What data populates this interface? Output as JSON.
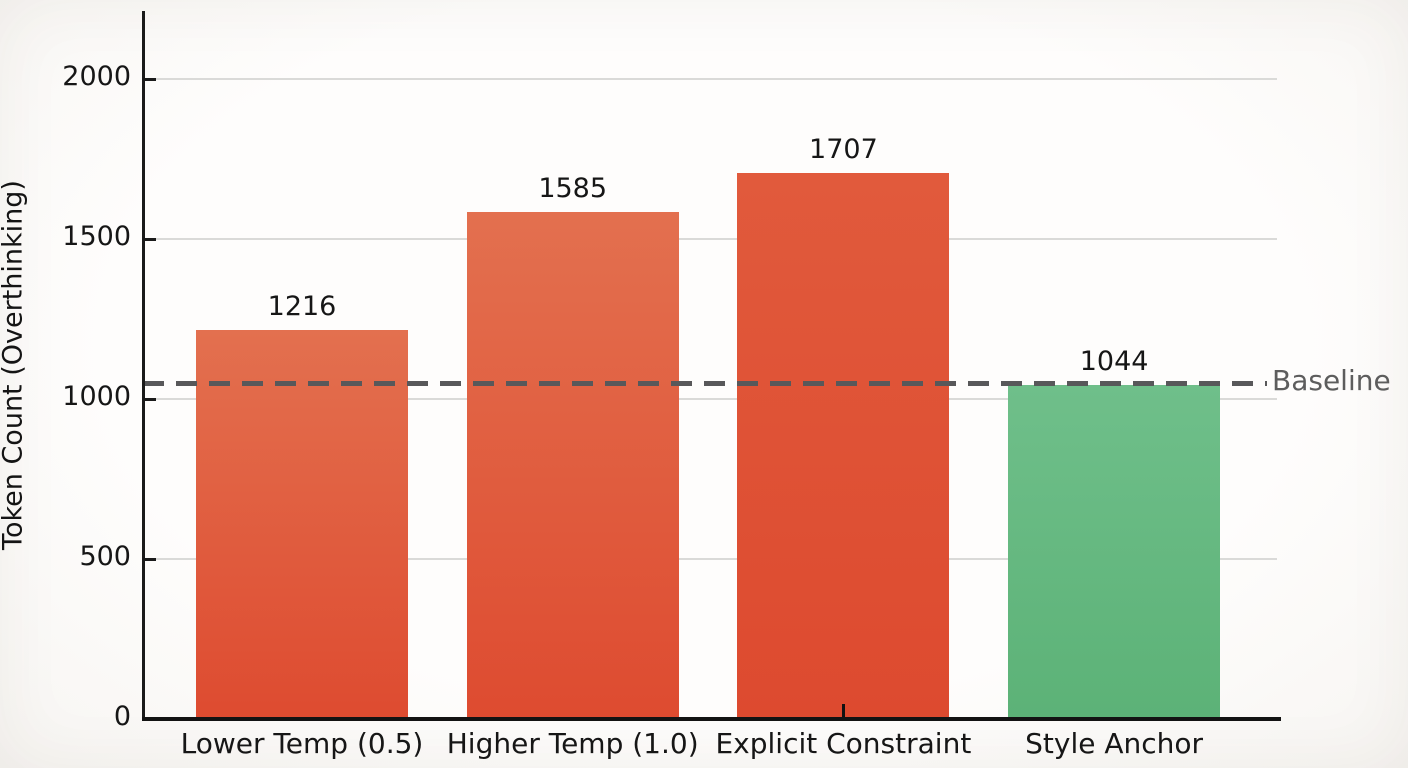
{
  "chart_data": {
    "type": "bar",
    "title": "",
    "xlabel": "",
    "ylabel": "Token Count (Overthinking)",
    "categories": [
      "Lower Temp (0.5)",
      "Higher Temp (1.0)",
      "Explicit Constraint",
      "Style Anchor"
    ],
    "values": [
      1216,
      1585,
      1707,
      1044
    ],
    "value_labels": [
      "1216",
      "1585",
      "1707",
      "1044"
    ],
    "ytick_labels": [
      "0",
      "500",
      "1000",
      "1500",
      "2000"
    ],
    "ytick_values": [
      0,
      500,
      1000,
      1500,
      2000
    ],
    "ylim": [
      0,
      2216
    ],
    "grid": "horizontal",
    "legend_position": "none",
    "baseline": {
      "value": 1050,
      "label": "Baseline",
      "style": "dashed",
      "color": "#58585a",
      "label_color": "#5d5d5d"
    },
    "bar_colors": [
      {
        "top": "#e3704f",
        "bottom": "#de4b30"
      },
      {
        "top": "#e3704f",
        "bottom": "#de4b30"
      },
      {
        "top": "#e15a3c",
        "bottom": "#dd4a2f"
      },
      {
        "top": "#6fbf8a",
        "bottom": "#5cb277"
      }
    ],
    "axis_color": "#1a1a1a",
    "grid_color": "#dadad8",
    "text_color": "#161616"
  }
}
